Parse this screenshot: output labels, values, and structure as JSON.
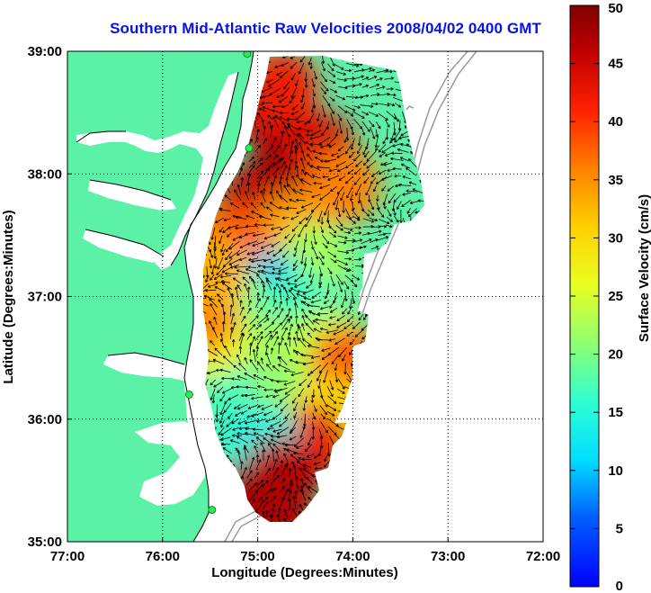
{
  "title": "Southern Mid-Atlantic Raw Velocities 2008/04/02 0400 GMT",
  "axes": {
    "xlabel": "Longitude (Degrees:Minutes)",
    "ylabel": "Latitude (Degrees:Minutes)",
    "x_ticks": [
      "77:00",
      "76:00",
      "75:00",
      "74:00",
      "73:00",
      "72:00"
    ],
    "y_ticks": [
      "39:00",
      "38:00",
      "37:00",
      "36:00",
      "35:00"
    ],
    "x_range": [
      -77,
      -72
    ],
    "y_range": [
      35,
      39
    ]
  },
  "colorbar": {
    "label": "Surface Velocity (cm/s)",
    "ticks": [
      "50",
      "45",
      "40",
      "35",
      "30",
      "25",
      "20",
      "15",
      "10",
      "5",
      "0"
    ],
    "range": [
      0,
      50
    ]
  },
  "colors": {
    "title": "#0a10e8",
    "land": "#5bf2a8",
    "grid": "#000000"
  },
  "stations": [
    {
      "lon": -75.11,
      "lat": 38.98
    },
    {
      "lon": -75.09,
      "lat": 38.21
    },
    {
      "lon": -75.72,
      "lat": 36.2
    },
    {
      "lon": -75.48,
      "lat": 35.26
    }
  ],
  "velocity_patches": [
    {
      "lon": -74.7,
      "lat": 38.05,
      "speed": 49
    },
    {
      "lon": -74.9,
      "lat": 38.55,
      "speed": 45
    },
    {
      "lon": -74.75,
      "lat": 38.7,
      "speed": 42
    },
    {
      "lon": -74.35,
      "lat": 38.2,
      "speed": 44
    },
    {
      "lon": -74.1,
      "lat": 37.9,
      "speed": 36
    },
    {
      "lon": -75.05,
      "lat": 37.75,
      "speed": 46
    },
    {
      "lon": -74.6,
      "lat": 37.55,
      "speed": 34
    },
    {
      "lon": -75.3,
      "lat": 37.45,
      "speed": 38
    },
    {
      "lon": -74.4,
      "lat": 37.3,
      "speed": 22
    },
    {
      "lon": -74.9,
      "lat": 37.05,
      "speed": 10
    },
    {
      "lon": -75.25,
      "lat": 36.95,
      "speed": 20
    },
    {
      "lon": -74.55,
      "lat": 36.9,
      "speed": 17
    },
    {
      "lon": -75.35,
      "lat": 36.55,
      "speed": 27
    },
    {
      "lon": -74.75,
      "lat": 36.55,
      "speed": 22
    },
    {
      "lon": -74.25,
      "lat": 36.6,
      "speed": 24
    },
    {
      "lon": -74.05,
      "lat": 36.45,
      "speed": 38
    },
    {
      "lon": -75.2,
      "lat": 36.1,
      "speed": 17
    },
    {
      "lon": -74.7,
      "lat": 36.1,
      "speed": 21
    },
    {
      "lon": -74.25,
      "lat": 36.05,
      "speed": 30
    },
    {
      "lon": -74.45,
      "lat": 35.8,
      "speed": 43
    },
    {
      "lon": -74.95,
      "lat": 35.8,
      "speed": 14
    },
    {
      "lon": -74.75,
      "lat": 35.55,
      "speed": 46
    },
    {
      "lon": -75.05,
      "lat": 35.35,
      "speed": 48
    },
    {
      "lon": -74.8,
      "lat": 35.25,
      "speed": 47
    },
    {
      "lon": -75.6,
      "lat": 36.85,
      "speed": 36
    },
    {
      "lon": -75.5,
      "lat": 37.2,
      "speed": 33
    }
  ]
}
